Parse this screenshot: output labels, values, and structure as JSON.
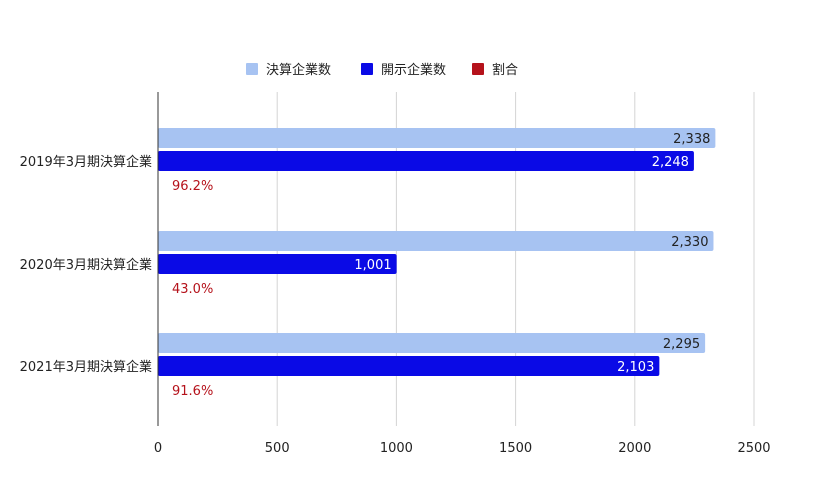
{
  "chart_data": {
    "type": "bar",
    "orientation": "horizontal",
    "categories": [
      "2019年3月期決算企業",
      "2020年3月期決算企業",
      "2021年3月期決算企業"
    ],
    "series": [
      {
        "name": "決算企業数",
        "values": [
          2338,
          2330,
          2295
        ],
        "labels": [
          "2,338",
          "2,330",
          "2,295"
        ],
        "color": "#a7c3f2",
        "label_color": "#222222"
      },
      {
        "name": "開示企業数",
        "values": [
          2248,
          1001,
          2103
        ],
        "labels": [
          "2,248",
          "1,001",
          "2,103"
        ],
        "color": "#0a0ae6",
        "label_color": "#ffffff"
      }
    ],
    "ratio": {
      "name": "割合",
      "labels": [
        "96.2%",
        "43.0%",
        "91.6%"
      ],
      "color": "#b5121b"
    },
    "xlim": [
      0,
      2500
    ],
    "xticks": [
      "0",
      "500",
      "1000",
      "1500",
      "2000",
      "2500"
    ],
    "grid": true,
    "legend": "top-center"
  }
}
